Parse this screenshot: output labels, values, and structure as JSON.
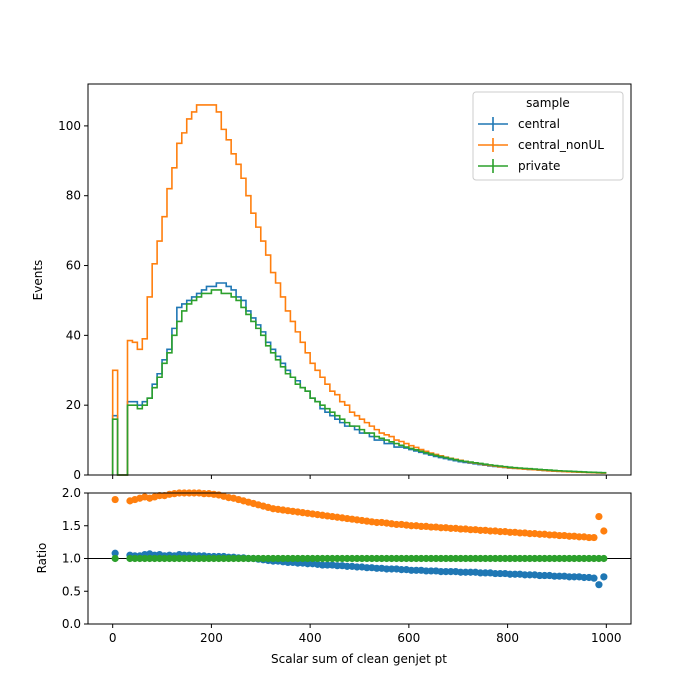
{
  "chart_data": {
    "type": "line",
    "title": "",
    "xlabel": "Scalar sum of clean genjet pt",
    "xlim": [
      -50,
      1050
    ],
    "x_ticks": [
      0,
      200,
      400,
      600,
      800,
      1000
    ],
    "bin_width": 10,
    "legend": {
      "title": "sample",
      "placement": "top-right"
    },
    "top_panel": {
      "ylabel": "Events",
      "ylim": [
        0,
        112
      ],
      "y_ticks": [
        0,
        20,
        40,
        60,
        80,
        100
      ],
      "series": [
        {
          "name": "central",
          "color": "#1f77b4",
          "values": [
            17,
            0,
            0,
            21,
            21,
            20,
            21,
            22,
            26,
            29,
            33,
            36,
            42,
            48,
            49,
            50,
            51,
            52,
            53,
            54,
            54,
            55,
            55,
            54,
            53,
            51,
            50,
            47,
            45,
            43,
            41,
            38,
            36,
            34,
            32,
            30,
            28,
            27,
            25,
            24,
            22,
            21,
            19,
            18,
            17,
            16,
            15,
            14,
            14,
            13,
            12,
            12,
            11,
            10,
            10,
            9,
            9,
            8,
            8,
            7.7,
            7.3,
            6.9,
            6.5,
            6.1,
            5.7,
            5.3,
            5,
            4.7,
            4.4,
            4.1,
            3.8,
            3.6,
            3.4,
            3.2,
            3,
            2.8,
            2.6,
            2.45,
            2.3,
            2.15,
            2,
            1.9,
            1.8,
            1.7,
            1.6,
            1.5,
            1.4,
            1.3,
            1.2,
            1.1,
            1.05,
            1,
            0.95,
            0.9,
            0.85,
            0.8,
            0.75,
            0.7,
            0.65,
            0.6
          ]
        },
        {
          "name": "central_nonUL",
          "color": "#ff7f0e",
          "values": [
            30,
            0,
            0,
            38.5,
            38,
            36,
            39,
            51,
            60.5,
            67,
            74,
            82,
            88,
            95,
            98,
            102,
            104,
            106,
            106,
            106,
            106,
            104,
            99,
            96,
            92,
            89,
            85,
            80,
            75,
            71,
            67,
            63,
            58,
            55,
            51,
            47,
            44,
            41,
            38,
            35,
            32,
            30,
            28,
            26,
            24,
            23,
            21,
            20,
            18,
            17,
            16,
            15,
            14,
            13,
            12,
            11.5,
            11,
            10,
            9.6,
            9,
            8.4,
            7.9,
            7.3,
            6.8,
            6.3,
            5.9,
            5.5,
            5.1,
            4.8,
            4.5,
            4.2,
            3.9,
            3.6,
            3.4,
            3.2,
            2.95,
            2.75,
            2.55,
            2.35,
            2.2,
            2.05,
            1.9,
            1.8,
            1.7,
            1.6,
            1.5,
            1.4,
            1.3,
            1.2,
            1.12,
            1.05,
            0.98,
            0.92,
            0.86,
            0.8,
            0.75,
            0.7,
            0.65,
            0.6,
            0.55
          ]
        },
        {
          "name": "private",
          "color": "#2ca02c",
          "values": [
            16,
            0,
            0,
            20,
            20,
            19,
            20,
            22,
            25,
            28,
            32,
            35,
            40,
            44,
            47,
            49,
            50,
            51,
            52,
            52,
            53,
            53,
            52,
            52,
            51,
            50,
            48,
            46,
            44,
            42,
            40,
            37,
            35,
            33,
            31,
            29,
            28,
            26,
            25,
            24,
            22,
            21,
            20,
            19,
            18,
            17,
            16,
            15,
            14,
            14,
            13,
            12,
            12,
            11,
            10.5,
            10,
            9.5,
            9,
            8.5,
            8,
            7.6,
            7.2,
            6.8,
            6.4,
            6,
            5.6,
            5.3,
            5,
            4.7,
            4.4,
            4.1,
            3.9,
            3.7,
            3.5,
            3.3,
            3.1,
            2.9,
            2.7,
            2.55,
            2.4,
            2.25,
            2.1,
            2,
            1.9,
            1.8,
            1.7,
            1.6,
            1.5,
            1.4,
            1.3,
            1.22,
            1.15,
            1.08,
            1.01,
            0.94,
            0.88,
            0.82,
            0.76,
            0.7,
            0.65
          ]
        }
      ]
    },
    "ratio_panel": {
      "ylabel": "Ratio",
      "ylim": [
        0,
        2
      ],
      "y_ticks": [
        0.0,
        0.5,
        1.0,
        1.5,
        2.0
      ],
      "reference_line": 1.0,
      "series": [
        {
          "name": "central",
          "color": "#1f77b4",
          "values": [
            1.08,
            null,
            null,
            1.05,
            1.04,
            1.04,
            1.06,
            1.07,
            1.05,
            1.06,
            1.04,
            1.05,
            1.04,
            1.06,
            1.05,
            1.05,
            1.04,
            1.04,
            1.04,
            1.03,
            1.03,
            1.03,
            1.03,
            1.02,
            1.02,
            1.01,
            1.01,
            1.0,
            1.0,
            0.99,
            0.98,
            0.97,
            0.96,
            0.96,
            0.95,
            0.94,
            0.94,
            0.93,
            0.93,
            0.92,
            0.92,
            0.91,
            0.9,
            0.9,
            0.9,
            0.89,
            0.89,
            0.88,
            0.88,
            0.87,
            0.87,
            0.86,
            0.86,
            0.85,
            0.85,
            0.84,
            0.84,
            0.84,
            0.83,
            0.83,
            0.82,
            0.82,
            0.82,
            0.81,
            0.81,
            0.81,
            0.8,
            0.8,
            0.8,
            0.8,
            0.79,
            0.79,
            0.79,
            0.79,
            0.78,
            0.78,
            0.78,
            0.77,
            0.77,
            0.77,
            0.76,
            0.76,
            0.76,
            0.75,
            0.75,
            0.75,
            0.74,
            0.74,
            0.74,
            0.73,
            0.73,
            0.73,
            0.72,
            0.72,
            0.72,
            0.71,
            0.71,
            0.7,
            0.6,
            0.72
          ]
        },
        {
          "name": "central_nonUL",
          "color": "#ff7f0e",
          "values": [
            1.9,
            null,
            null,
            1.88,
            1.9,
            1.92,
            1.94,
            1.92,
            1.94,
            1.96,
            1.96,
            1.98,
            1.99,
            2.0,
            2.0,
            2.0,
            2.0,
            2.0,
            1.99,
            1.99,
            1.98,
            1.97,
            1.95,
            1.93,
            1.92,
            1.9,
            1.88,
            1.86,
            1.84,
            1.82,
            1.8,
            1.78,
            1.76,
            1.75,
            1.74,
            1.73,
            1.72,
            1.71,
            1.7,
            1.69,
            1.68,
            1.67,
            1.66,
            1.65,
            1.64,
            1.63,
            1.62,
            1.61,
            1.6,
            1.59,
            1.58,
            1.57,
            1.56,
            1.55,
            1.55,
            1.54,
            1.53,
            1.52,
            1.52,
            1.51,
            1.5,
            1.5,
            1.49,
            1.49,
            1.48,
            1.48,
            1.47,
            1.47,
            1.46,
            1.46,
            1.45,
            1.45,
            1.44,
            1.44,
            1.43,
            1.43,
            1.42,
            1.42,
            1.41,
            1.41,
            1.4,
            1.4,
            1.39,
            1.39,
            1.38,
            1.38,
            1.37,
            1.37,
            1.36,
            1.36,
            1.35,
            1.35,
            1.34,
            1.34,
            1.33,
            1.33,
            1.32,
            1.32,
            1.64,
            1.42
          ]
        },
        {
          "name": "private",
          "color": "#2ca02c",
          "values": [
            1.0,
            null,
            null,
            1.0,
            1.0,
            1.0,
            1.0,
            1.0,
            1.0,
            1.0,
            1.0,
            1.0,
            1.0,
            1.0,
            1.0,
            1.0,
            1.0,
            1.0,
            1.0,
            1.0,
            1.0,
            1.0,
            1.0,
            1.0,
            1.0,
            1.0,
            1.0,
            1.0,
            1.0,
            1.0,
            1.0,
            1.0,
            1.0,
            1.0,
            1.0,
            1.0,
            1.0,
            1.0,
            1.0,
            1.0,
            1.0,
            1.0,
            1.0,
            1.0,
            1.0,
            1.0,
            1.0,
            1.0,
            1.0,
            1.0,
            1.0,
            1.0,
            1.0,
            1.0,
            1.0,
            1.0,
            1.0,
            1.0,
            1.0,
            1.0,
            1.0,
            1.0,
            1.0,
            1.0,
            1.0,
            1.0,
            1.0,
            1.0,
            1.0,
            1.0,
            1.0,
            1.0,
            1.0,
            1.0,
            1.0,
            1.0,
            1.0,
            1.0,
            1.0,
            1.0,
            1.0,
            1.0,
            1.0,
            1.0,
            1.0,
            1.0,
            1.0,
            1.0,
            1.0,
            1.0,
            1.0,
            1.0,
            1.0,
            1.0,
            1.0,
            1.0,
            1.0,
            1.0,
            1.0,
            1.0
          ]
        }
      ]
    }
  }
}
